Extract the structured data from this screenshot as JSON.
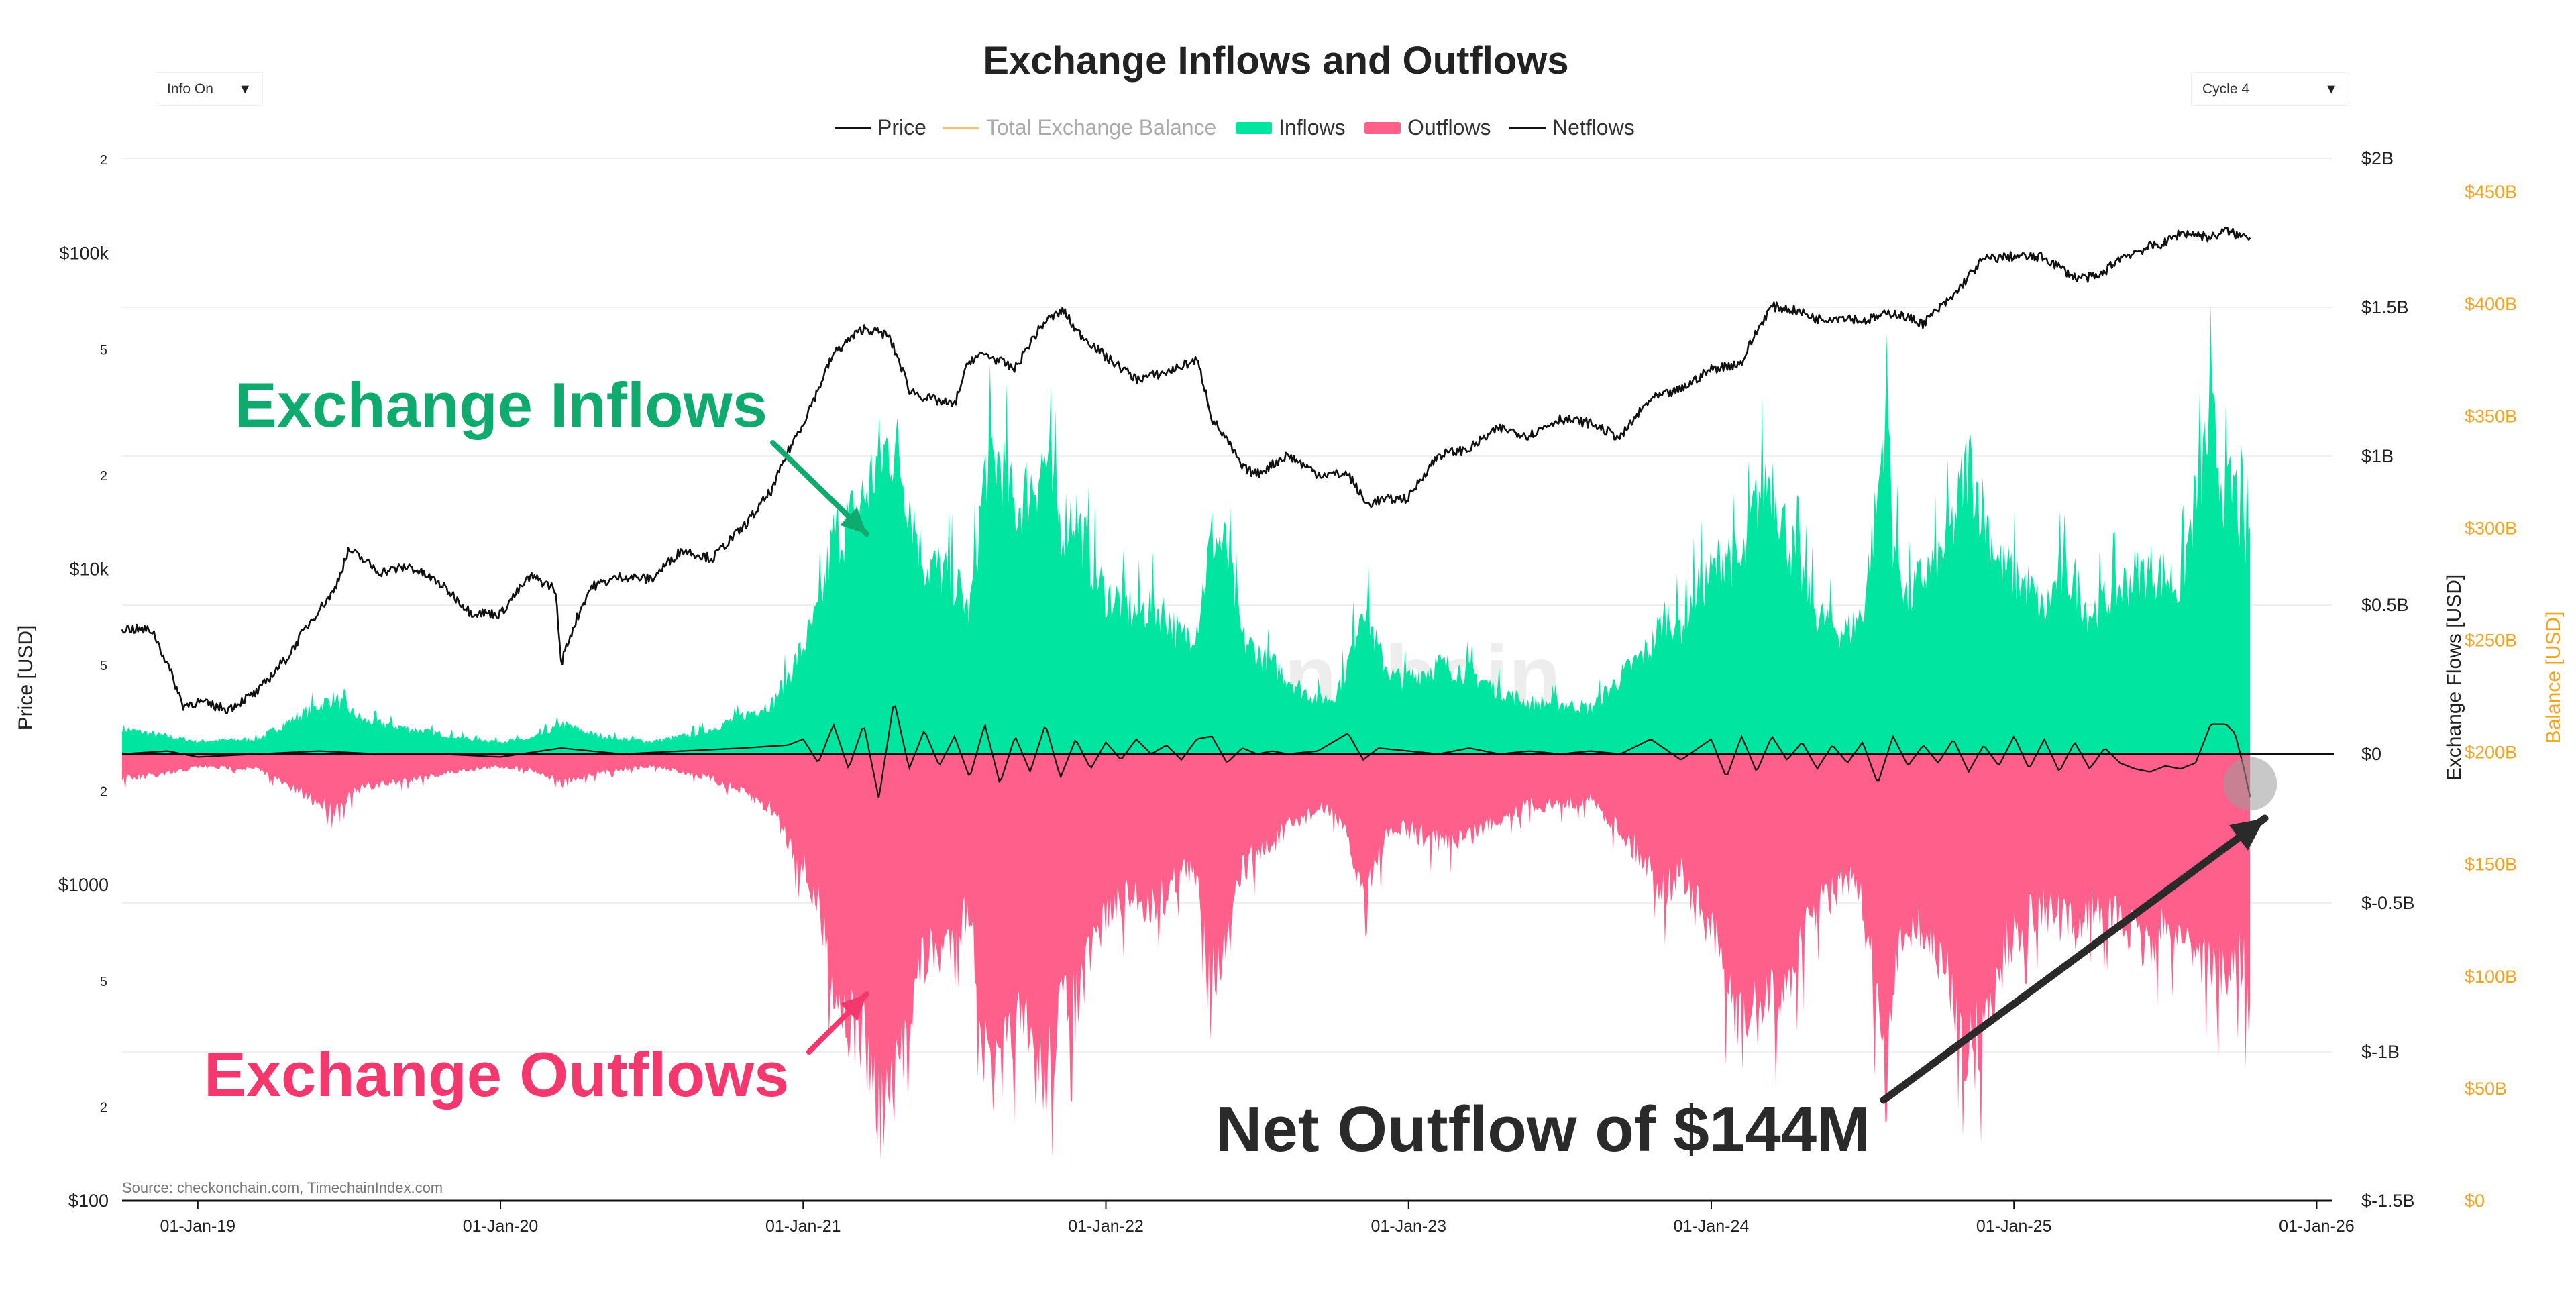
{
  "controls": {
    "info_dropdown": {
      "label": "Info On",
      "arrow": "▼"
    },
    "cycle_dropdown": {
      "label": "Cycle 4",
      "arrow": "▼"
    }
  },
  "colors": {
    "inflows": "#00e5a0",
    "outflows": "#ff5f8a",
    "price": "#111111",
    "netflows": "#111111",
    "balance_axis": "#f5a31a",
    "inflow_annotation": "#0eaa6e",
    "outflow_annotation": "#f4386d",
    "net_annotation": "#2a2a2a"
  },
  "chart_data": {
    "type": "area",
    "title": "Exchange Inflows and Outflows",
    "legend": [
      {
        "name": "Price",
        "style": "line",
        "color": "#111111",
        "active": true
      },
      {
        "name": "Total Exchange Balance",
        "style": "line",
        "color": "#f5c16c",
        "active": false
      },
      {
        "name": "Inflows",
        "style": "area",
        "color": "#00e5a0",
        "active": true
      },
      {
        "name": "Outflows",
        "style": "area",
        "color": "#ff5f8a",
        "active": true
      },
      {
        "name": "Netflows",
        "style": "line",
        "color": "#111111",
        "active": true
      }
    ],
    "x_axis": {
      "range": [
        2018.75,
        2026.05
      ],
      "ticks": [
        {
          "value": 2019,
          "label": "01-Jan-19"
        },
        {
          "value": 2020,
          "label": "01-Jan-20"
        },
        {
          "value": 2021,
          "label": "01-Jan-21"
        },
        {
          "value": 2022,
          "label": "01-Jan-22"
        },
        {
          "value": 2023,
          "label": "01-Jan-23"
        },
        {
          "value": 2024,
          "label": "01-Jan-24"
        },
        {
          "value": 2025,
          "label": "01-Jan-25"
        },
        {
          "value": 2026,
          "label": "01-Jan-26"
        }
      ]
    },
    "y_axis_price": {
      "label": "Price [USD]",
      "scale": "log",
      "range": [
        100,
        200000
      ],
      "ticks": [
        {
          "value": 100,
          "label": "$100"
        },
        {
          "value": 200,
          "label": "2"
        },
        {
          "value": 500,
          "label": "5"
        },
        {
          "value": 1000,
          "label": "$1000"
        },
        {
          "value": 2000,
          "label": "2"
        },
        {
          "value": 5000,
          "label": "5"
        },
        {
          "value": 10000,
          "label": "$10k"
        },
        {
          "value": 20000,
          "label": "2"
        },
        {
          "value": 50000,
          "label": "5"
        },
        {
          "value": 100000,
          "label": "$100k"
        },
        {
          "value": 200000,
          "label": "2"
        }
      ]
    },
    "y_axis_flows": {
      "label": "Exchange Flows [USD]",
      "range": [
        -1.5,
        2.0
      ],
      "unit": "billions",
      "ticks": [
        {
          "value": 2.0,
          "label": "$2B"
        },
        {
          "value": 1.5,
          "label": "$1.5B"
        },
        {
          "value": 1.0,
          "label": "$1B"
        },
        {
          "value": 0.5,
          "label": "$0.5B"
        },
        {
          "value": 0,
          "label": "$0"
        },
        {
          "value": -0.5,
          "label": "$-0.5B"
        },
        {
          "value": -1.0,
          "label": "$-1B"
        },
        {
          "value": -1.5,
          "label": "$-1.5B"
        }
      ]
    },
    "y_axis_balance": {
      "label": "Balance [USD]",
      "range": [
        0,
        465
      ],
      "unit": "billions",
      "ticks": [
        {
          "value": 0,
          "label": "$0"
        },
        {
          "value": 50,
          "label": "$50B"
        },
        {
          "value": 100,
          "label": "$100B"
        },
        {
          "value": 150,
          "label": "$150B"
        },
        {
          "value": 200,
          "label": "$200B"
        },
        {
          "value": 250,
          "label": "$250B"
        },
        {
          "value": 300,
          "label": "$300B"
        },
        {
          "value": 350,
          "label": "$350B"
        },
        {
          "value": 400,
          "label": "$400B"
        },
        {
          "value": 450,
          "label": "$450B"
        }
      ]
    },
    "series": [
      {
        "name": "Price",
        "axis": "price",
        "x": [
          2018.75,
          2018.85,
          2018.88,
          2018.95,
          2019.0,
          2019.1,
          2019.2,
          2019.3,
          2019.45,
          2019.5,
          2019.6,
          2019.7,
          2019.8,
          2019.9,
          2020.0,
          2020.1,
          2020.18,
          2020.2,
          2020.3,
          2020.4,
          2020.5,
          2020.6,
          2020.7,
          2020.8,
          2020.85,
          2020.9,
          2021.0,
          2021.05,
          2021.1,
          2021.2,
          2021.28,
          2021.35,
          2021.4,
          2021.45,
          2021.5,
          2021.55,
          2021.6,
          2021.7,
          2021.8,
          2021.86,
          2021.9,
          2022.0,
          2022.1,
          2022.2,
          2022.3,
          2022.35,
          2022.45,
          2022.5,
          2022.6,
          2022.7,
          2022.8,
          2022.86,
          2022.9,
          2023.0,
          2023.1,
          2023.2,
          2023.3,
          2023.4,
          2023.5,
          2023.6,
          2023.7,
          2023.8,
          2023.9,
          2024.0,
          2024.1,
          2024.2,
          2024.28,
          2024.35,
          2024.45,
          2024.5,
          2024.6,
          2024.7,
          2024.8,
          2024.9,
          2025.0,
          2025.1,
          2025.2,
          2025.28,
          2025.35,
          2025.45,
          2025.5,
          2025.55,
          2025.6,
          2025.65,
          2025.7,
          2025.75,
          2025.78
        ],
        "values": [
          6500,
          6400,
          5500,
          3700,
          3800,
          3600,
          4100,
          5300,
          8500,
          11500,
          9800,
          10200,
          9000,
          7300,
          7200,
          9500,
          8700,
          5000,
          8800,
          9500,
          9300,
          11500,
          10800,
          13500,
          15500,
          18000,
          29000,
          37000,
          48000,
          58000,
          55000,
          37000,
          35000,
          34000,
          33000,
          46000,
          48000,
          43000,
          61000,
          66000,
          57000,
          47000,
          40000,
          42000,
          46000,
          30000,
          21000,
          20000,
          23000,
          20000,
          20000,
          16000,
          16500,
          16800,
          23000,
          24000,
          28000,
          26500,
          30000,
          29000,
          26000,
          34500,
          37000,
          43000,
          45000,
          68000,
          66000,
          62000,
          63000,
          61000,
          65000,
          60000,
          73000,
          96000,
          98000,
          97000,
          84000,
          84000,
          97000,
          105000,
          108000,
          116000,
          115000,
          112000,
          118000,
          113000,
          114000
        ]
      },
      {
        "name": "Inflows",
        "axis": "flows",
        "x": [
          2018.75,
          2018.9,
          2019.0,
          2019.2,
          2019.35,
          2019.45,
          2019.5,
          2019.55,
          2019.6,
          2019.7,
          2019.8,
          2019.9,
          2020.0,
          2020.1,
          2020.18,
          2020.2,
          2020.3,
          2020.4,
          2020.5,
          2020.6,
          2020.7,
          2020.8,
          2020.9,
          2021.0,
          2021.05,
          2021.1,
          2021.15,
          2021.2,
          2021.25,
          2021.3,
          2021.35,
          2021.4,
          2021.45,
          2021.5,
          2021.55,
          2021.6,
          2021.65,
          2021.7,
          2021.75,
          2021.8,
          2021.85,
          2021.9,
          2021.95,
          2022.0,
          2022.05,
          2022.1,
          2022.15,
          2022.2,
          2022.25,
          2022.3,
          2022.35,
          2022.4,
          2022.45,
          2022.5,
          2022.55,
          2022.6,
          2022.65,
          2022.7,
          2022.75,
          2022.8,
          2022.85,
          2022.9,
          2022.95,
          2023.0,
          2023.1,
          2023.2,
          2023.3,
          2023.4,
          2023.5,
          2023.6,
          2023.7,
          2023.8,
          2023.85,
          2023.9,
          2023.95,
          2024.0,
          2024.05,
          2024.1,
          2024.15,
          2024.2,
          2024.25,
          2024.3,
          2024.35,
          2024.4,
          2024.45,
          2024.5,
          2024.55,
          2024.58,
          2024.6,
          2024.65,
          2024.7,
          2024.75,
          2024.8,
          2024.85,
          2024.9,
          2024.95,
          2025.0,
          2025.05,
          2025.1,
          2025.15,
          2025.2,
          2025.25,
          2025.3,
          2025.35,
          2025.4,
          2025.45,
          2025.5,
          2025.55,
          2025.6,
          2025.65,
          2025.7,
          2025.73,
          2025.76,
          2025.78
        ],
        "values": [
          0.1,
          0.07,
          0.05,
          0.06,
          0.16,
          0.22,
          0.17,
          0.13,
          0.12,
          0.1,
          0.08,
          0.06,
          0.05,
          0.06,
          0.1,
          0.12,
          0.08,
          0.06,
          0.05,
          0.07,
          0.1,
          0.15,
          0.2,
          0.42,
          0.55,
          0.85,
          0.9,
          1.0,
          1.15,
          1.22,
          1.0,
          0.75,
          0.72,
          0.68,
          0.55,
          1.1,
          1.15,
          0.95,
          1.05,
          1.15,
          0.9,
          0.95,
          0.75,
          0.62,
          0.6,
          0.55,
          0.58,
          0.55,
          0.45,
          0.5,
          0.85,
          0.8,
          0.45,
          0.4,
          0.35,
          0.3,
          0.25,
          0.22,
          0.22,
          0.35,
          0.62,
          0.4,
          0.3,
          0.3,
          0.35,
          0.32,
          0.25,
          0.2,
          0.2,
          0.18,
          0.3,
          0.42,
          0.55,
          0.5,
          0.65,
          0.7,
          0.8,
          0.72,
          1.0,
          1.1,
          0.85,
          0.7,
          0.55,
          0.5,
          0.48,
          0.55,
          1.0,
          1.45,
          0.85,
          0.6,
          0.7,
          0.75,
          0.9,
          1.15,
          0.95,
          0.75,
          0.7,
          0.65,
          0.55,
          0.7,
          0.68,
          0.55,
          0.6,
          0.65,
          0.7,
          0.72,
          0.7,
          0.65,
          1.0,
          1.3,
          1.0,
          1.05,
          0.8,
          0.9
        ]
      },
      {
        "name": "Outflows",
        "axis": "flows",
        "x": [
          2018.75,
          2018.9,
          2019.0,
          2019.2,
          2019.35,
          2019.45,
          2019.5,
          2019.55,
          2019.6,
          2019.7,
          2019.8,
          2019.9,
          2020.0,
          2020.1,
          2020.18,
          2020.2,
          2020.3,
          2020.4,
          2020.5,
          2020.6,
          2020.7,
          2020.8,
          2020.9,
          2021.0,
          2021.05,
          2021.1,
          2021.15,
          2021.2,
          2021.25,
          2021.3,
          2021.35,
          2021.4,
          2021.45,
          2021.5,
          2021.55,
          2021.6,
          2021.65,
          2021.7,
          2021.75,
          2021.8,
          2021.85,
          2021.9,
          2021.95,
          2022.0,
          2022.05,
          2022.1,
          2022.15,
          2022.2,
          2022.25,
          2022.3,
          2022.35,
          2022.4,
          2022.45,
          2022.5,
          2022.55,
          2022.6,
          2022.65,
          2022.7,
          2022.75,
          2022.8,
          2022.85,
          2022.9,
          2022.95,
          2023.0,
          2023.1,
          2023.2,
          2023.3,
          2023.4,
          2023.5,
          2023.6,
          2023.7,
          2023.8,
          2023.85,
          2023.9,
          2023.95,
          2024.0,
          2024.05,
          2024.1,
          2024.15,
          2024.2,
          2024.25,
          2024.3,
          2024.35,
          2024.4,
          2024.45,
          2024.5,
          2024.55,
          2024.58,
          2024.6,
          2024.65,
          2024.7,
          2024.75,
          2024.8,
          2024.85,
          2024.9,
          2024.95,
          2025.0,
          2025.05,
          2025.1,
          2025.15,
          2025.2,
          2025.25,
          2025.3,
          2025.35,
          2025.4,
          2025.45,
          2025.5,
          2025.55,
          2025.6,
          2025.65,
          2025.7,
          2025.73,
          2025.76,
          2025.78
        ],
        "values": [
          -0.1,
          -0.08,
          -0.05,
          -0.06,
          -0.16,
          -0.22,
          -0.17,
          -0.13,
          -0.12,
          -0.1,
          -0.08,
          -0.06,
          -0.05,
          -0.06,
          -0.1,
          -0.12,
          -0.08,
          -0.06,
          -0.05,
          -0.07,
          -0.1,
          -0.15,
          -0.22,
          -0.45,
          -0.6,
          -0.9,
          -1.05,
          -1.1,
          -1.4,
          -1.35,
          -1.0,
          -0.8,
          -0.78,
          -0.7,
          -0.6,
          -1.2,
          -1.3,
          -1.05,
          -1.15,
          -1.3,
          -1.0,
          -1.0,
          -0.8,
          -0.62,
          -0.6,
          -0.55,
          -0.6,
          -0.55,
          -0.45,
          -0.5,
          -0.85,
          -0.78,
          -0.45,
          -0.4,
          -0.35,
          -0.3,
          -0.25,
          -0.22,
          -0.22,
          -0.35,
          -0.55,
          -0.4,
          -0.3,
          -0.3,
          -0.35,
          -0.32,
          -0.25,
          -0.2,
          -0.2,
          -0.18,
          -0.3,
          -0.45,
          -0.55,
          -0.45,
          -0.6,
          -0.7,
          -0.9,
          -1.1,
          -1.0,
          -1.0,
          -0.9,
          -0.75,
          -0.6,
          -0.55,
          -0.5,
          -0.6,
          -1.0,
          -1.4,
          -0.9,
          -0.65,
          -0.7,
          -0.8,
          -0.95,
          -1.2,
          -1.1,
          -0.85,
          -0.7,
          -0.65,
          -0.6,
          -0.65,
          -0.7,
          -0.6,
          -0.62,
          -0.65,
          -0.72,
          -0.75,
          -0.7,
          -0.7,
          -0.75,
          -0.85,
          -0.9,
          -0.8,
          -0.85,
          -1.05
        ]
      },
      {
        "name": "Netflows",
        "axis": "flows",
        "x": [
          2018.75,
          2018.9,
          2019.0,
          2019.2,
          2019.4,
          2019.6,
          2019.8,
          2020.0,
          2020.2,
          2020.4,
          2020.6,
          2020.8,
          2020.95,
          2021.0,
          2021.05,
          2021.1,
          2021.15,
          2021.2,
          2021.25,
          2021.3,
          2021.35,
          2021.4,
          2021.45,
          2021.5,
          2021.55,
          2021.6,
          2021.65,
          2021.7,
          2021.75,
          2021.8,
          2021.85,
          2021.9,
          2021.95,
          2022.0,
          2022.05,
          2022.1,
          2022.15,
          2022.2,
          2022.25,
          2022.3,
          2022.35,
          2022.4,
          2022.45,
          2022.5,
          2022.55,
          2022.6,
          2022.7,
          2022.8,
          2022.85,
          2022.9,
          2023.0,
          2023.1,
          2023.2,
          2023.3,
          2023.4,
          2023.5,
          2023.6,
          2023.7,
          2023.8,
          2023.9,
          2024.0,
          2024.05,
          2024.1,
          2024.15,
          2024.2,
          2024.25,
          2024.3,
          2024.35,
          2024.4,
          2024.45,
          2024.5,
          2024.55,
          2024.6,
          2024.65,
          2024.7,
          2024.75,
          2024.8,
          2024.85,
          2024.9,
          2024.95,
          2025.0,
          2025.05,
          2025.1,
          2025.15,
          2025.2,
          2025.25,
          2025.3,
          2025.35,
          2025.4,
          2025.45,
          2025.5,
          2025.55,
          2025.6,
          2025.65,
          2025.7,
          2025.73,
          2025.76,
          2025.78
        ],
        "values": [
          0.0,
          0.01,
          -0.01,
          0.0,
          0.01,
          0.0,
          0.0,
          -0.01,
          0.02,
          0.0,
          0.01,
          0.02,
          0.03,
          0.05,
          -0.03,
          0.1,
          -0.05,
          0.1,
          -0.15,
          0.18,
          -0.05,
          0.08,
          -0.04,
          0.06,
          -0.08,
          0.1,
          -0.1,
          0.06,
          -0.06,
          0.1,
          -0.08,
          0.05,
          -0.05,
          0.04,
          -0.02,
          0.05,
          0.0,
          0.03,
          -0.02,
          0.05,
          0.06,
          -0.03,
          0.02,
          0.0,
          0.01,
          0.0,
          0.01,
          0.07,
          -0.02,
          0.02,
          0.01,
          0.0,
          0.02,
          0.0,
          0.01,
          0.0,
          0.01,
          0.0,
          0.05,
          -0.02,
          0.05,
          -0.08,
          0.06,
          -0.06,
          0.06,
          -0.02,
          0.04,
          -0.05,
          0.03,
          -0.03,
          0.04,
          -0.1,
          0.06,
          -0.04,
          0.03,
          -0.03,
          0.05,
          -0.06,
          0.03,
          -0.04,
          0.06,
          -0.05,
          0.05,
          -0.06,
          0.04,
          -0.05,
          0.02,
          -0.03,
          -0.05,
          -0.06,
          -0.04,
          -0.05,
          -0.03,
          0.1,
          0.1,
          0.07,
          -0.05,
          -0.144
        ]
      }
    ],
    "annotations": [
      {
        "id": "inflows",
        "text": "Exchange Inflows",
        "points_to_x": 2021.1,
        "points_to_value": 0.8
      },
      {
        "id": "outflows",
        "text": "Exchange Outflows",
        "points_to_x": 2021.1,
        "points_to_value": -0.85
      },
      {
        "id": "net",
        "text": "Net Outflow of $144M",
        "points_to_x": 2025.76,
        "points_to_value": -0.22
      }
    ],
    "highlight": {
      "x": 2025.78,
      "value": -0.1
    },
    "source": "Source: checkonchain.com, TimechainIndex.com",
    "watermark": "checkonchain"
  }
}
